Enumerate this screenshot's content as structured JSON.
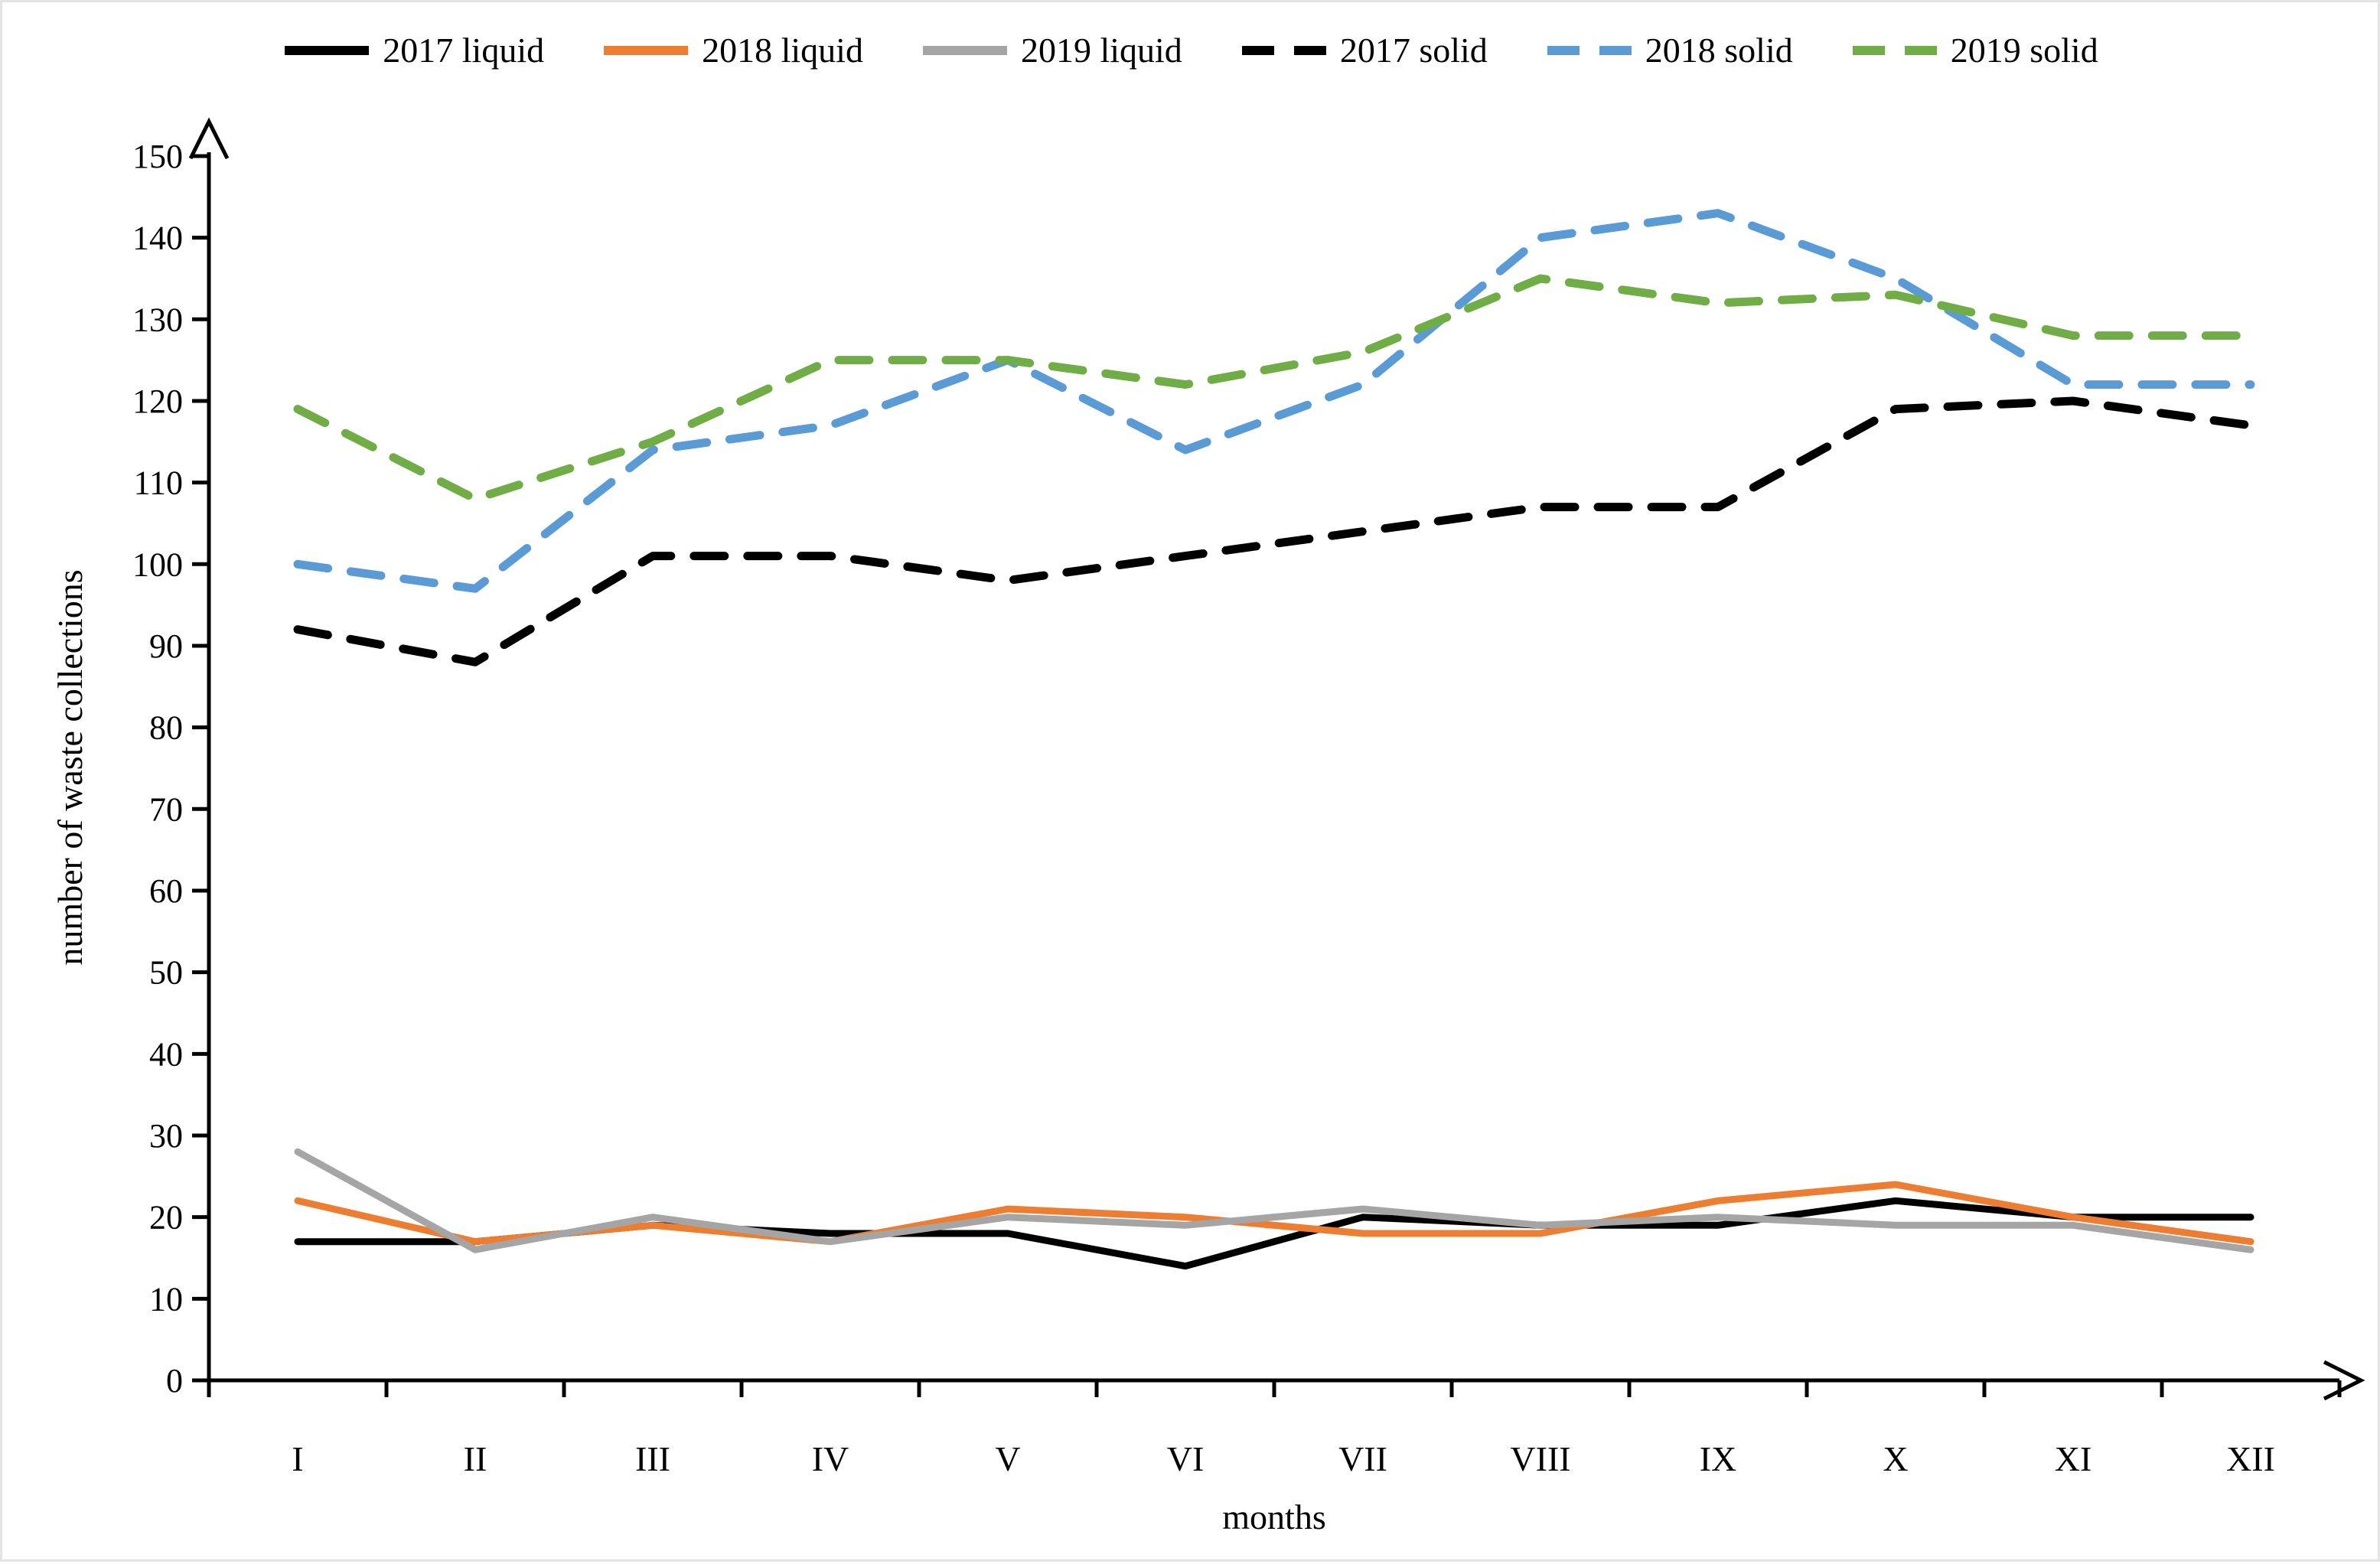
{
  "figure": {
    "background": "#ffffff",
    "border_color": "#e4e4e4"
  },
  "legend": {
    "position": "top",
    "items": [
      {
        "label": "2017 liquid",
        "color": "#000000",
        "dashed": false
      },
      {
        "label": "2018 liquid",
        "color": "#ED7D31",
        "dashed": false
      },
      {
        "label": "2019 liquid",
        "color": "#A5A5A5",
        "dashed": false
      },
      {
        "label": "2017 solid",
        "color": "#000000",
        "dashed": true
      },
      {
        "label": "2018 solid",
        "color": "#5B9BD5",
        "dashed": true
      },
      {
        "label": "2019 solid",
        "color": "#70AD47",
        "dashed": true
      }
    ]
  },
  "chart_data": {
    "type": "line",
    "title": "",
    "xlabel": "months",
    "ylabel": "number of waste collections",
    "ylim": [
      0,
      150
    ],
    "ytick_step": 10,
    "grid": false,
    "axis_arrows": true,
    "categories": [
      "I",
      "II",
      "III",
      "IV",
      "V",
      "VI",
      "VII",
      "VIII",
      "IX",
      "X",
      "XI",
      "XII"
    ],
    "series": [
      {
        "name": "2017 liquid",
        "color": "#000000",
        "dashed": false,
        "values": [
          17,
          17,
          19,
          18,
          18,
          14,
          20,
          19,
          19,
          22,
          20,
          20
        ]
      },
      {
        "name": "2018 liquid",
        "color": "#ED7D31",
        "dashed": false,
        "values": [
          22,
          17,
          19,
          17,
          21,
          20,
          18,
          18,
          22,
          24,
          20,
          17
        ]
      },
      {
        "name": "2019 liquid",
        "color": "#A5A5A5",
        "dashed": false,
        "values": [
          28,
          16,
          20,
          17,
          20,
          19,
          21,
          19,
          20,
          19,
          19,
          16
        ]
      },
      {
        "name": "2017 solid",
        "color": "#000000",
        "dashed": true,
        "values": [
          92,
          88,
          101,
          101,
          98,
          101,
          104,
          107,
          107,
          119,
          120,
          117
        ]
      },
      {
        "name": "2018 solid",
        "color": "#5B9BD5",
        "dashed": true,
        "values": [
          100,
          97,
          114,
          117,
          125,
          114,
          122,
          140,
          143,
          135,
          122,
          122
        ]
      },
      {
        "name": "2019 solid",
        "color": "#70AD47",
        "dashed": true,
        "values": [
          119,
          108,
          115,
          125,
          125,
          122,
          126,
          135,
          132,
          133,
          128,
          128
        ]
      }
    ]
  }
}
